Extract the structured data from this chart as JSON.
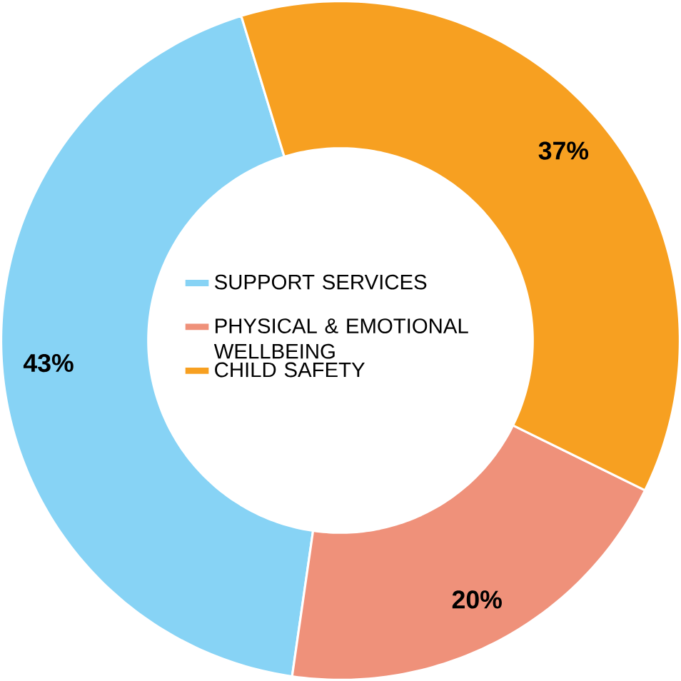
{
  "chart_data": {
    "type": "donut",
    "categories": [
      "SUPPORT SERVICES",
      "PHYSICAL & EMOTIONAL WELLBEING",
      "CHILD SAFETY"
    ],
    "values": [
      43,
      20,
      37
    ],
    "colors": [
      "#87d3f5",
      "#ef917a",
      "#f7a021"
    ],
    "value_labels": [
      "43%",
      "20%",
      "37%"
    ],
    "legend": "center"
  }
}
